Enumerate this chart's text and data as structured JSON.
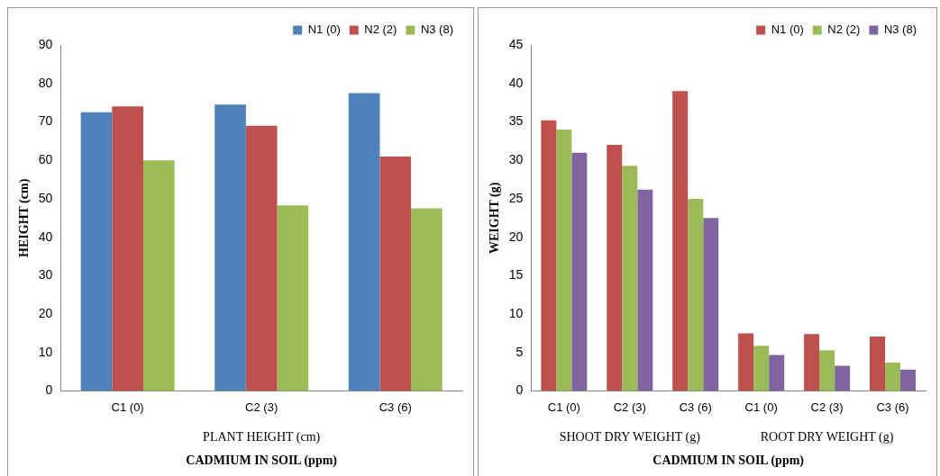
{
  "chart_data": [
    {
      "type": "bar",
      "categories": [
        "C1 (0)",
        "C2 (3)",
        "C3 (6)"
      ],
      "ylabel": "HEIGHT (cm)",
      "xlabel": "CADMIUM IN SOIL (ppm)",
      "annotations": [
        "PLANT HEIGHT (cm)"
      ],
      "ylim": [
        0,
        90
      ],
      "yticks": [
        0,
        10,
        20,
        30,
        40,
        50,
        60,
        70,
        80,
        90
      ],
      "legend": "top right",
      "grid": false,
      "series": [
        {
          "name": "N1 (0)",
          "color": "#4f81bd",
          "values": [
            72.5,
            74.5,
            77.5
          ]
        },
        {
          "name": "N2 (2)",
          "color": "#c0504d",
          "values": [
            74,
            69,
            61
          ]
        },
        {
          "name": "N3 (8)",
          "color": "#9bbb59",
          "values": [
            60,
            48.3,
            47.5
          ]
        }
      ]
    },
    {
      "type": "bar",
      "categories": [
        "C1 (0)",
        "C2 (3)",
        "C3 (6)",
        "C1 (0)",
        "C2 (3)",
        "C3 (6)"
      ],
      "ylabel": "WEIGHT (g)",
      "xlabel": "CADMIUM IN SOIL (ppm)",
      "annotations": [
        "SHOOT DRY WEIGHT (g)",
        "ROOT DRY WEIGHT (g)"
      ],
      "ylim": [
        0,
        45
      ],
      "yticks": [
        0,
        5,
        10,
        15,
        20,
        25,
        30,
        35,
        40,
        45
      ],
      "legend": "top right",
      "grid": false,
      "series": [
        {
          "name": "N1 (0)",
          "color": "#c0504d",
          "values": [
            35.2,
            32,
            39,
            7.5,
            7.4,
            7.1
          ]
        },
        {
          "name": "N2 (2)",
          "color": "#9bbb59",
          "values": [
            34,
            29.3,
            25,
            5.9,
            5.3,
            3.7
          ]
        },
        {
          "name": "N3 (8)",
          "color": "#8064a2",
          "values": [
            31,
            26.2,
            22.5,
            4.7,
            3.3,
            2.8
          ]
        }
      ]
    }
  ]
}
